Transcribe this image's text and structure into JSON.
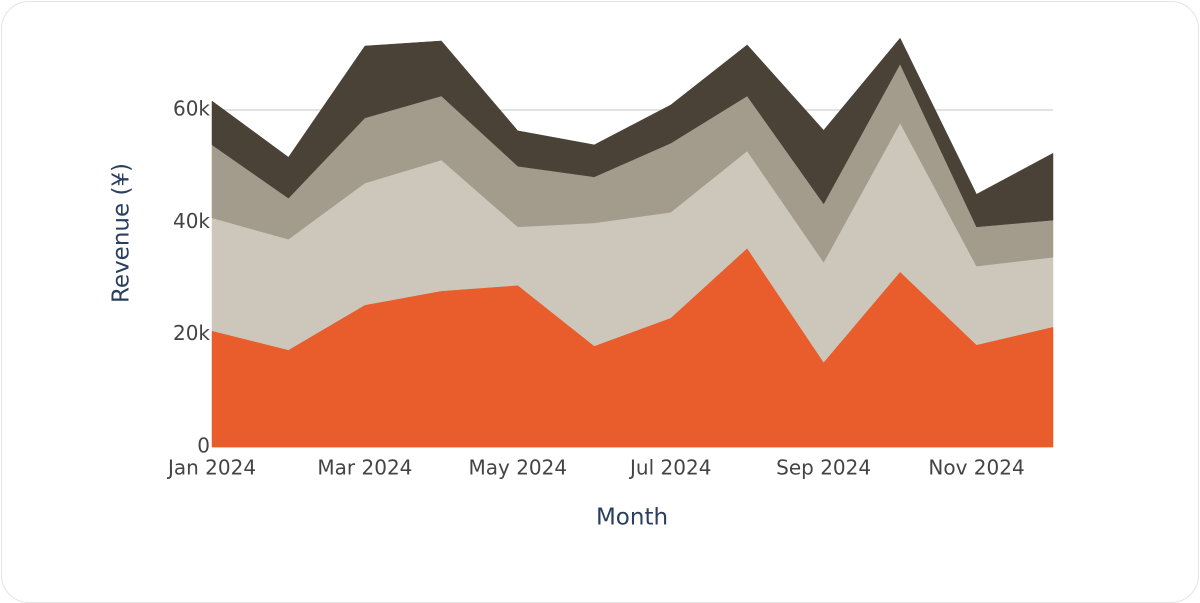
{
  "chart_data": {
    "type": "stacked-area",
    "x_label": "Month",
    "y_label": "Revenue (¥)",
    "categories": [
      "Jan 2024",
      null,
      "Mar 2024",
      null,
      "May 2024",
      null,
      "Jul 2024",
      null,
      "Sep 2024",
      null,
      "Nov 2024",
      null
    ],
    "series": [
      {
        "color": "#e85d2b",
        "values": [
          20700,
          17300,
          25300,
          27800,
          28800,
          18000,
          23000,
          35400,
          15100,
          31200,
          18200,
          21400
        ]
      },
      {
        "color": "#cdc6bb",
        "values": [
          20100,
          19700,
          21700,
          23300,
          10400,
          21900,
          18800,
          17300,
          17800,
          26500,
          14000,
          12400
        ]
      },
      {
        "color": "#a39b8b",
        "values": [
          13000,
          7300,
          11600,
          11400,
          10800,
          8200,
          12300,
          9800,
          10400,
          10500,
          7000,
          6600
        ]
      },
      {
        "color": "#4a4237",
        "values": [
          7800,
          7300,
          12800,
          9800,
          6300,
          5700,
          6800,
          9100,
          13100,
          4600,
          5800,
          11900
        ]
      }
    ],
    "ylim": [
      0,
      74000
    ],
    "yticks": [
      0,
      {
        "value": 20000,
        "label": "20k"
      },
      {
        "value": 40000,
        "label": "40k"
      },
      {
        "value": 60000,
        "label": "60k"
      }
    ],
    "grid": true
  }
}
